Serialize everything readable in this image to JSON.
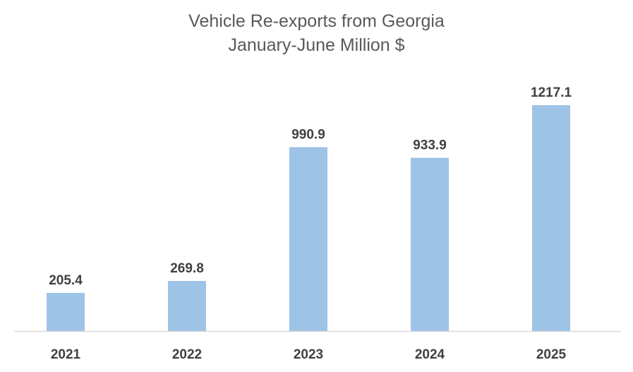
{
  "chart_data": {
    "type": "bar",
    "title": "Vehicle Re-exports from Georgia",
    "subtitle": "January-June Million $",
    "categories": [
      "2021",
      "2022",
      "2023",
      "2024",
      "2025"
    ],
    "values": [
      205.4,
      269.8,
      990.9,
      933.9,
      1217.1
    ],
    "value_labels": [
      "205.4",
      "269.8",
      "990.9",
      "933.9",
      "1217.1"
    ],
    "xlabel": "",
    "ylabel": "",
    "ylim": [
      0,
      1240
    ],
    "grid": false,
    "legend": "none",
    "colors": {
      "bar": "#9DC3E6",
      "axis": "#D9D9D9",
      "text": "#404040",
      "title": "#595959"
    }
  }
}
